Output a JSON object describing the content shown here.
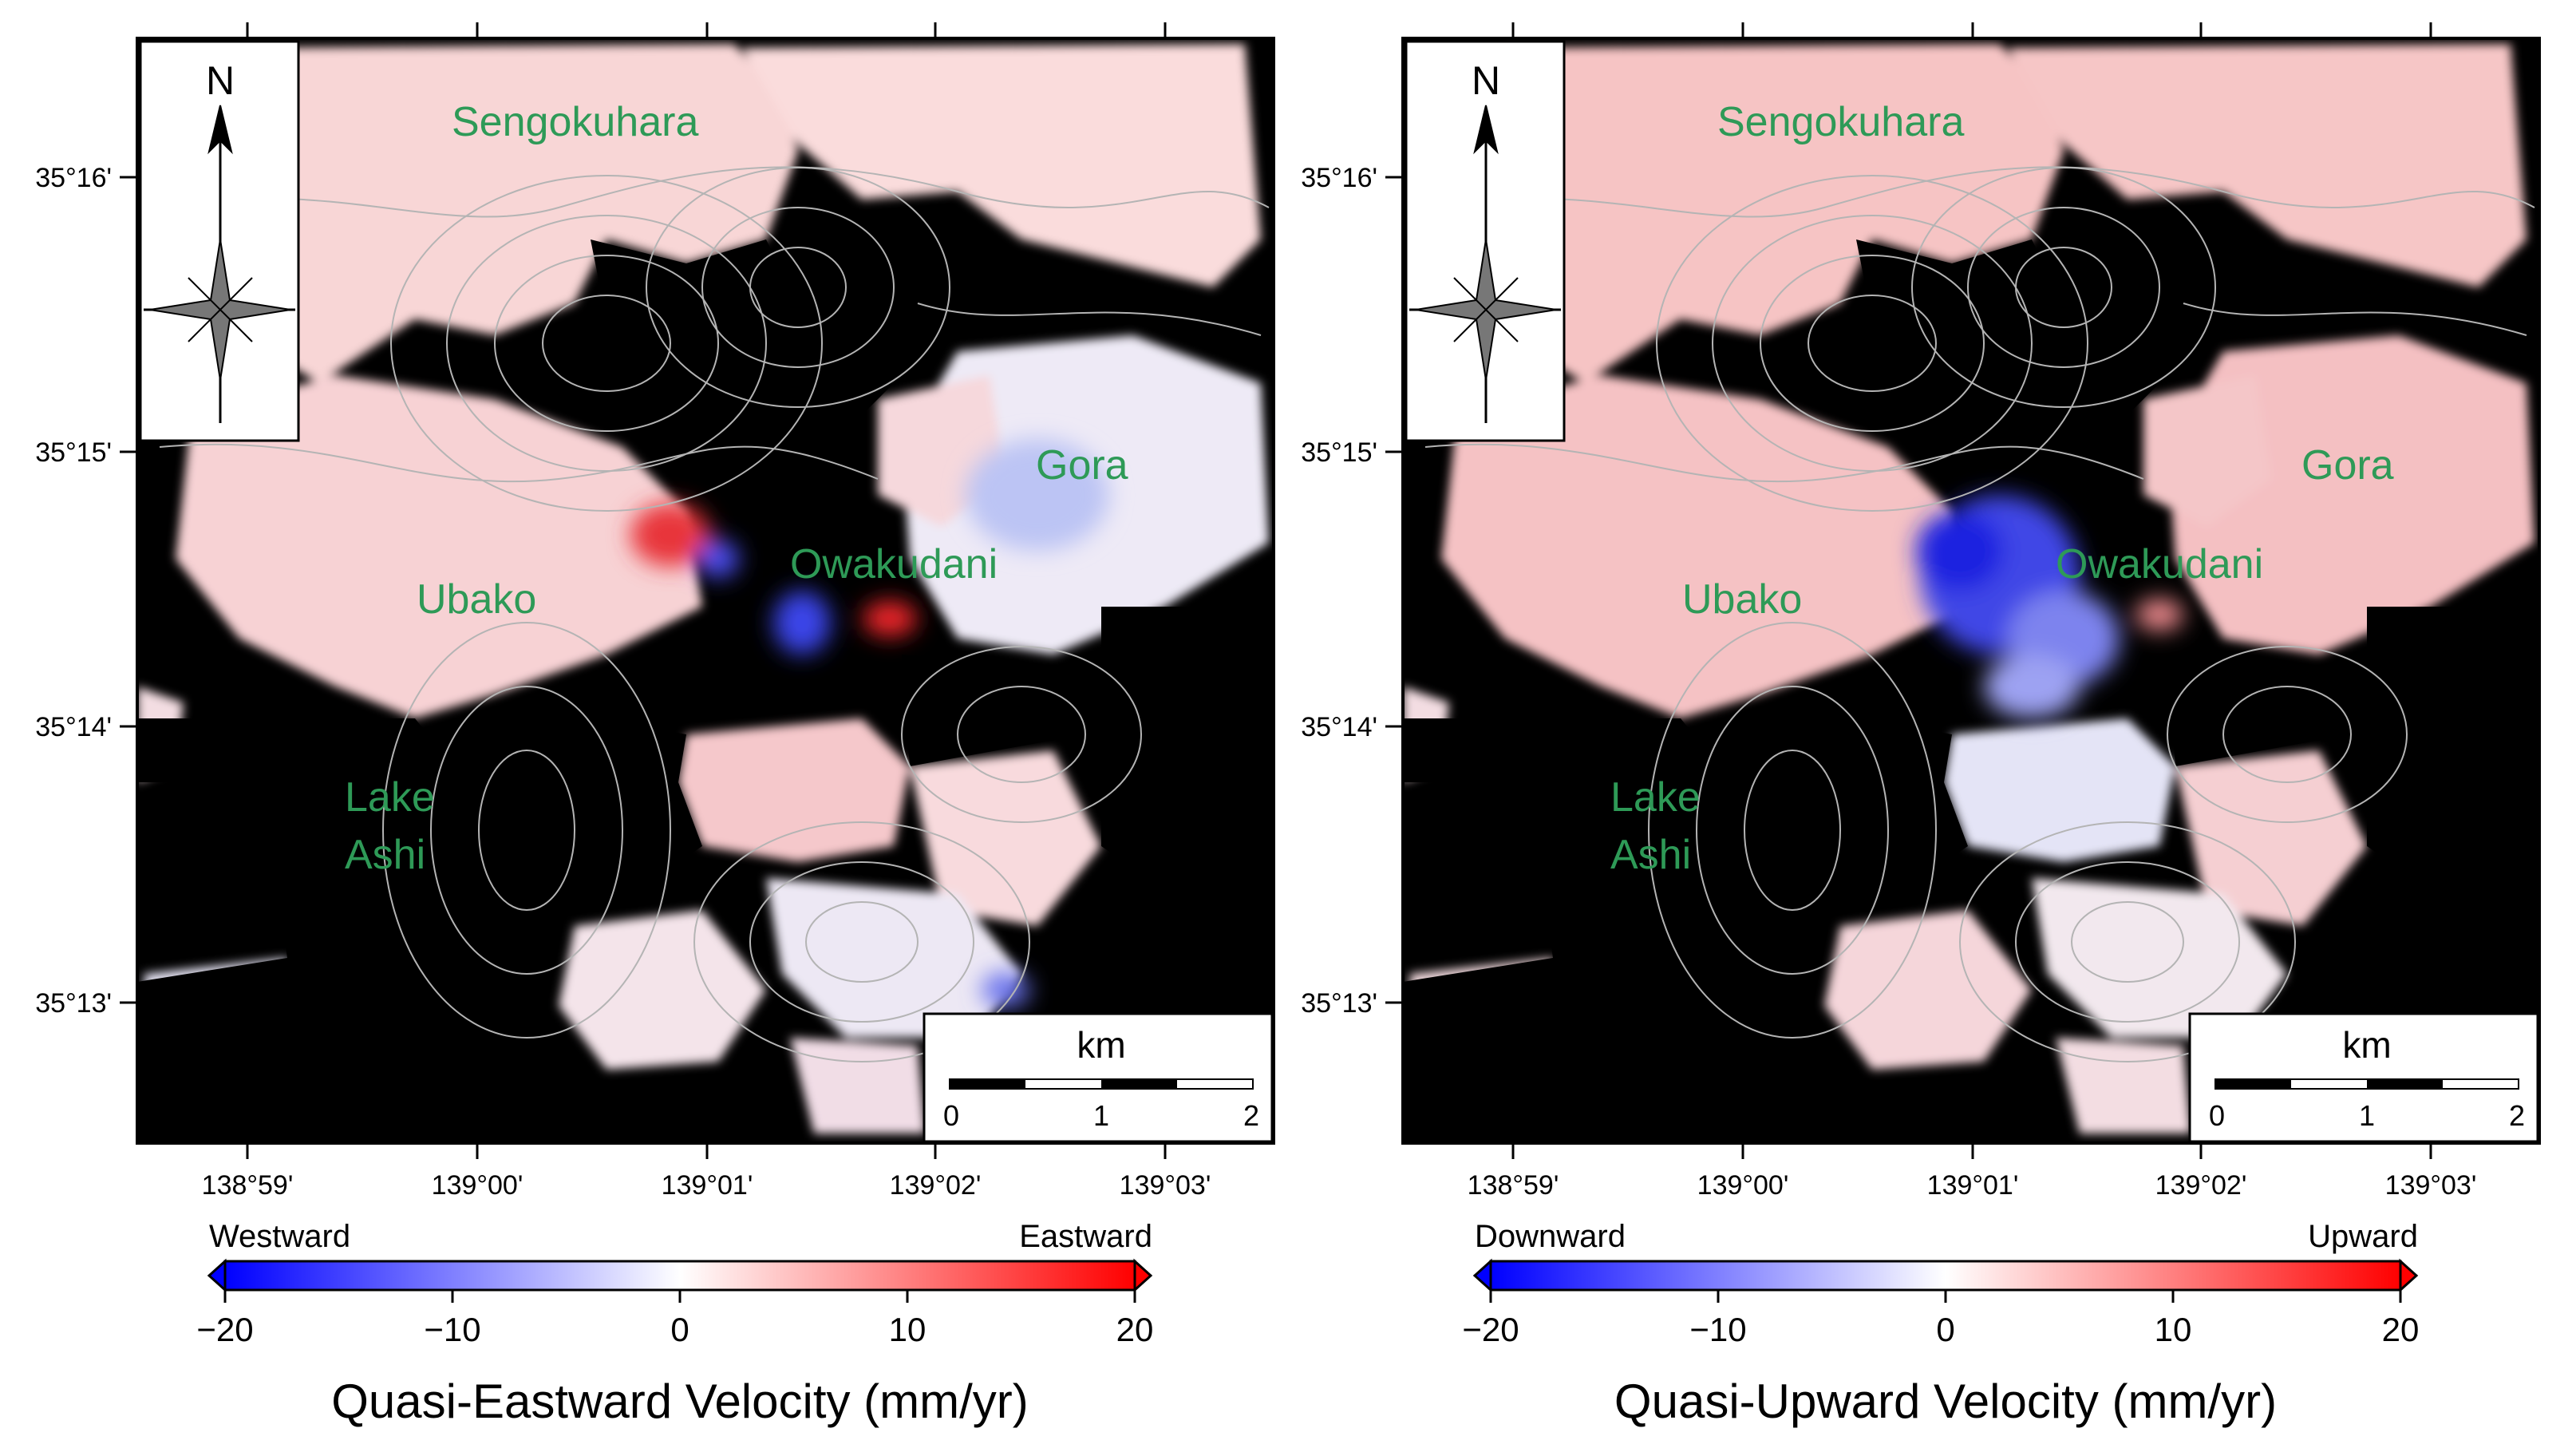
{
  "figure": {
    "lat_ticks": [
      "35°16'",
      "35°15'",
      "35°14'",
      "35°13'"
    ],
    "lon_ticks": [
      "138°59'",
      "139°00'",
      "139°01'",
      "139°02'",
      "139°03'"
    ],
    "place_labels": {
      "sengokuhara": "Sengokuhara",
      "gora": "Gora",
      "ubako": "Ubako",
      "owakudani": "Owakudani",
      "lake_line1": "Lake",
      "lake_line2": "Ashi"
    },
    "north_label": "N",
    "scalebar": {
      "unit": "km",
      "ticks": [
        "0",
        "1",
        "2"
      ]
    },
    "colors": {
      "negative": "#0000ff",
      "zero": "#ffffff",
      "positive": "#ff0000",
      "place_label": "#2e9a57",
      "masked": "#000000",
      "contour": "#b4b4b4"
    },
    "colorbar_ticks": [
      "−20",
      "−10",
      "0",
      "10",
      "20"
    ]
  },
  "panels": [
    {
      "id": "east",
      "end_left": "Westward",
      "end_right": "Eastward",
      "colorbar_title": "Quasi-Eastward Velocity (mm/yr)",
      "color_range_mm_per_yr": [
        -20,
        20
      ]
    },
    {
      "id": "up",
      "end_left": "Downward",
      "end_right": "Upward",
      "colorbar_title": "Quasi-Upward Velocity (mm/yr)",
      "color_range_mm_per_yr": [
        -20,
        20
      ]
    }
  ]
}
